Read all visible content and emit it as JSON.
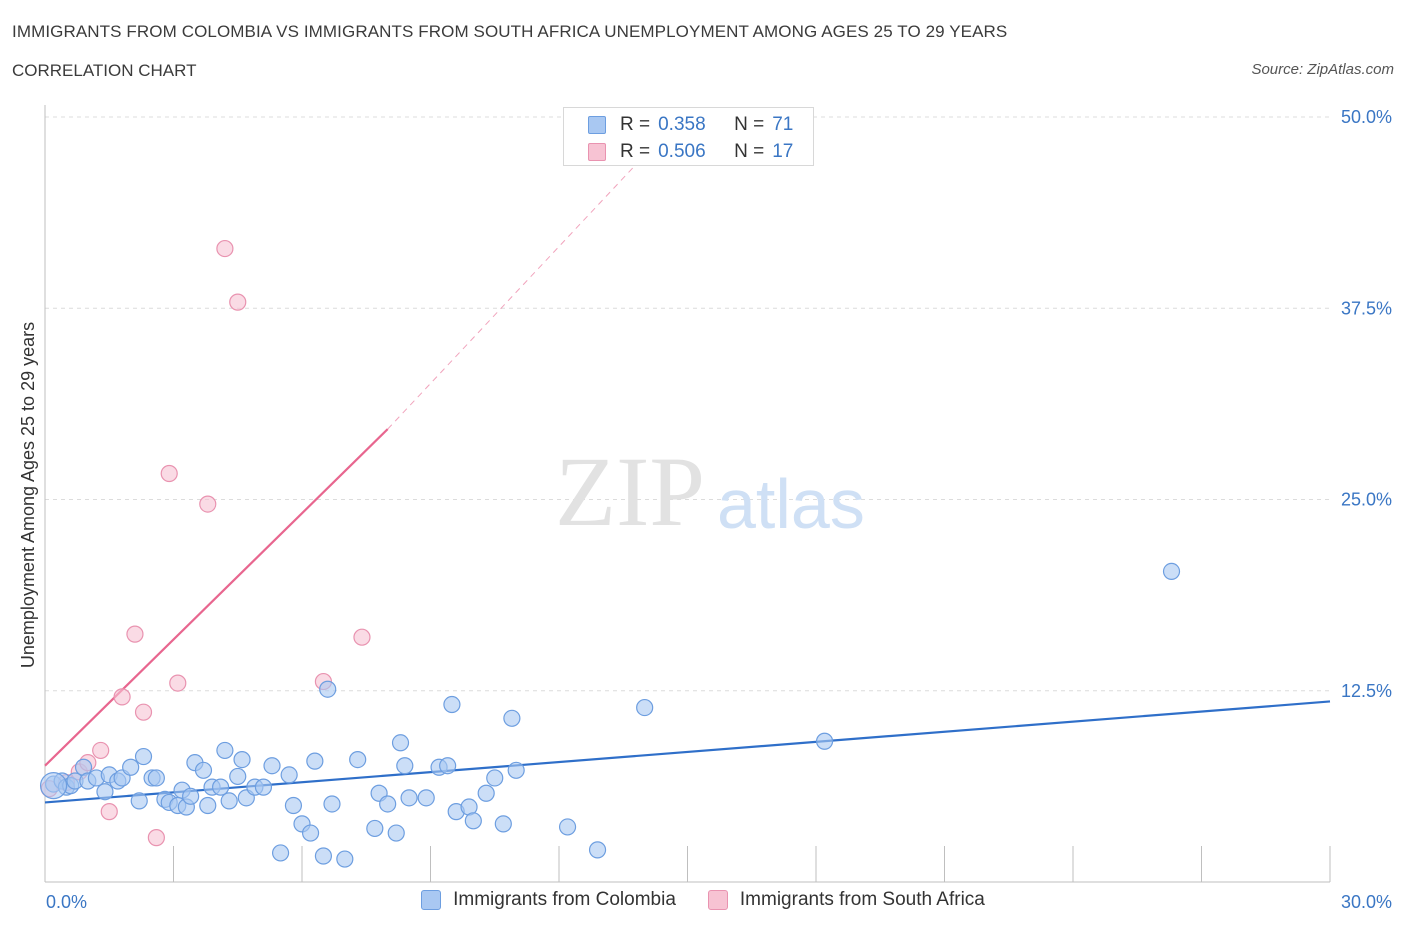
{
  "header": {
    "title": "IMMIGRANTS FROM COLOMBIA VS IMMIGRANTS FROM SOUTH AFRICA UNEMPLOYMENT AMONG AGES 25 TO 29 YEARS",
    "subtitle": "CORRELATION CHART",
    "source": "Source: ZipAtlas.com"
  },
  "watermark": {
    "zip": "ZIP",
    "atlas": "atlas"
  },
  "legend": {
    "colombia": {
      "r_label": "R =",
      "r_value": "0.358",
      "n_label": "N =",
      "n_value": "71"
    },
    "south_africa": {
      "r_label": "R =",
      "r_value": "0.506",
      "n_label": "N =",
      "n_value": "17"
    }
  },
  "colors": {
    "colombia_fill": "#a9c8f2",
    "colombia_stroke": "#6d9ee0",
    "colombia_line": "#2f6fc9",
    "south_africa_fill": "#f7c3d3",
    "south_africa_stroke": "#e993b0",
    "south_africa_line": "#e8668f",
    "axis_label": "#3a76c4",
    "grid": "#dcdcdc"
  },
  "chart_data": {
    "type": "scatter",
    "title": "IMMIGRANTS FROM COLOMBIA VS IMMIGRANTS FROM SOUTH AFRICA UNEMPLOYMENT AMONG AGES 25 TO 29 YEARS",
    "xlabel": "",
    "ylabel": "Unemployment Among Ages 25 to 29 years",
    "xlim": [
      0,
      30
    ],
    "ylim": [
      0,
      50
    ],
    "x_tick_labels": [
      "0.0%",
      "30.0%"
    ],
    "y_ticks": [
      12.5,
      25.0,
      37.5,
      50.0
    ],
    "y_tick_labels": [
      "12.5%",
      "25.0%",
      "37.5%",
      "50.0%"
    ],
    "legend_position": "top-center",
    "series": [
      {
        "name": "Immigrants from Colombia",
        "color": "#a9c8f2",
        "trend": {
          "x1": 0,
          "y1": 5.2,
          "x2": 30,
          "y2": 11.8,
          "dashed_to": null
        },
        "points": [
          [
            0.2,
            6.4
          ],
          [
            0.4,
            6.6
          ],
          [
            0.5,
            6.2
          ],
          [
            0.6,
            6.3
          ],
          [
            0.7,
            6.6
          ],
          [
            0.9,
            7.5
          ],
          [
            1.0,
            6.6
          ],
          [
            1.2,
            6.8
          ],
          [
            1.4,
            5.9
          ],
          [
            1.5,
            7.0
          ],
          [
            1.7,
            6.6
          ],
          [
            1.8,
            6.8
          ],
          [
            2.0,
            7.5
          ],
          [
            2.2,
            5.3
          ],
          [
            2.3,
            8.2
          ],
          [
            2.5,
            6.8
          ],
          [
            2.6,
            6.8
          ],
          [
            2.8,
            5.4
          ],
          [
            2.9,
            5.2
          ],
          [
            3.1,
            5.0
          ],
          [
            3.2,
            6.0
          ],
          [
            3.3,
            4.9
          ],
          [
            3.4,
            5.6
          ],
          [
            3.5,
            7.8
          ],
          [
            3.7,
            7.3
          ],
          [
            3.8,
            5.0
          ],
          [
            3.9,
            6.2
          ],
          [
            4.1,
            6.2
          ],
          [
            4.2,
            8.6
          ],
          [
            4.3,
            5.3
          ],
          [
            4.5,
            6.9
          ],
          [
            4.6,
            8.0
          ],
          [
            4.7,
            5.5
          ],
          [
            4.9,
            6.2
          ],
          [
            5.1,
            6.2
          ],
          [
            5.3,
            7.6
          ],
          [
            5.5,
            1.9
          ],
          [
            5.7,
            7.0
          ],
          [
            5.8,
            5.0
          ],
          [
            6.0,
            3.8
          ],
          [
            6.2,
            3.2
          ],
          [
            6.3,
            7.9
          ],
          [
            6.6,
            12.6
          ],
          [
            6.5,
            1.7
          ],
          [
            6.7,
            5.1
          ],
          [
            7.0,
            1.5
          ],
          [
            7.3,
            8.0
          ],
          [
            7.7,
            3.5
          ],
          [
            7.8,
            5.8
          ],
          [
            8.0,
            5.1
          ],
          [
            8.2,
            3.2
          ],
          [
            8.3,
            9.1
          ],
          [
            8.4,
            7.6
          ],
          [
            8.5,
            5.5
          ],
          [
            8.9,
            5.5
          ],
          [
            9.2,
            7.5
          ],
          [
            9.4,
            7.6
          ],
          [
            9.6,
            4.6
          ],
          [
            9.5,
            11.6
          ],
          [
            9.9,
            4.9
          ],
          [
            10.0,
            4.0
          ],
          [
            10.3,
            5.8
          ],
          [
            10.5,
            6.8
          ],
          [
            10.7,
            3.8
          ],
          [
            10.9,
            10.7
          ],
          [
            11.0,
            7.3
          ],
          [
            12.2,
            3.6
          ],
          [
            12.9,
            2.1
          ],
          [
            14.0,
            11.4
          ],
          [
            18.2,
            9.2
          ],
          [
            26.3,
            20.3
          ]
        ]
      },
      {
        "name": "Immigrants from South Africa",
        "color": "#f7c3d3",
        "trend": {
          "x1": 0,
          "y1": 7.6,
          "x2": 8,
          "y2": 29.6,
          "dashed_to": {
            "x": 14,
            "y": 47.5
          }
        },
        "points": [
          [
            0.1,
            6.1
          ],
          [
            0.5,
            6.5
          ],
          [
            0.8,
            7.2
          ],
          [
            1.0,
            7.8
          ],
          [
            1.3,
            8.6
          ],
          [
            1.5,
            4.6
          ],
          [
            1.8,
            12.1
          ],
          [
            2.1,
            16.2
          ],
          [
            2.3,
            11.1
          ],
          [
            2.6,
            2.9
          ],
          [
            2.9,
            26.7
          ],
          [
            3.1,
            13.0
          ],
          [
            3.8,
            24.7
          ],
          [
            4.2,
            41.4
          ],
          [
            4.5,
            37.9
          ],
          [
            6.5,
            13.1
          ],
          [
            7.4,
            16.0
          ]
        ]
      }
    ]
  },
  "bottom_legend": {
    "colombia": "Immigrants from Colombia",
    "south_africa": "Immigrants from South Africa"
  }
}
